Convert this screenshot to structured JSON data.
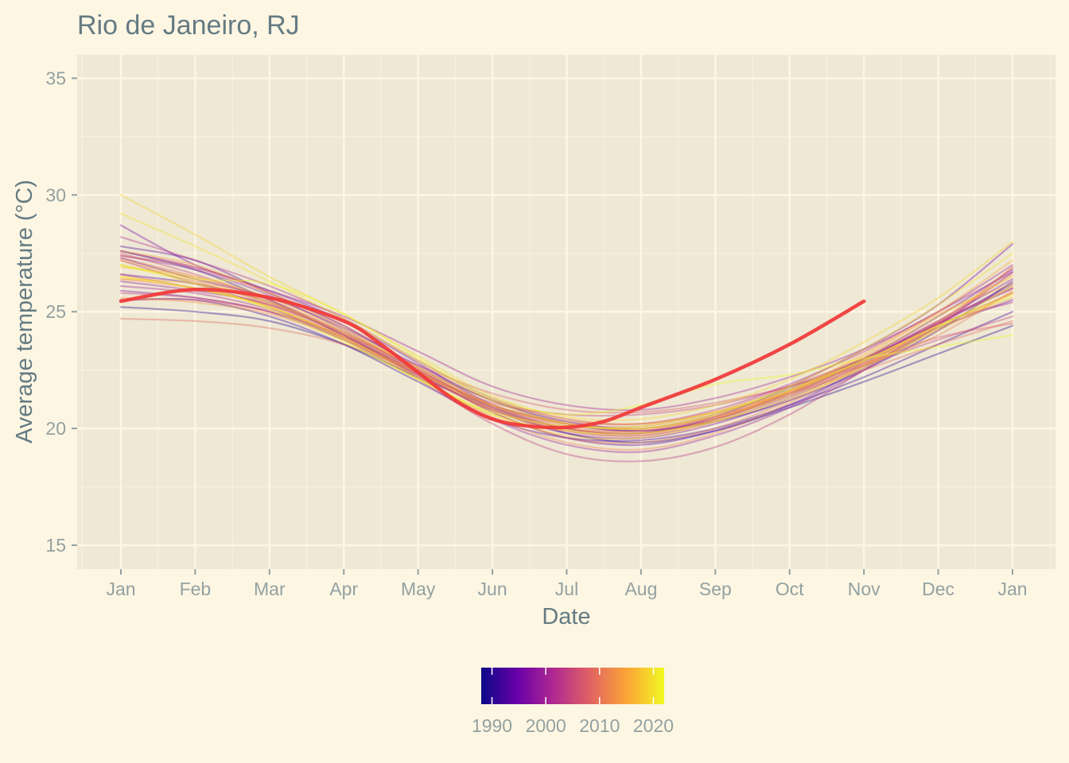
{
  "chart_data": {
    "type": "line",
    "title": "Rio de Janeiro, RJ",
    "xlabel": "Date",
    "ylabel": "Average temperature (°C)",
    "x_tick_labels": [
      "Jan",
      "Feb",
      "Mar",
      "Apr",
      "May",
      "Jun",
      "Jul",
      "Aug",
      "Sep",
      "Oct",
      "Nov",
      "Dec",
      "Jan"
    ],
    "y_ticks": [
      15,
      20,
      25,
      30,
      35
    ],
    "ylim": [
      14,
      36
    ],
    "xlim_months": [
      0,
      12
    ],
    "grid": true,
    "colorbar": {
      "title": "",
      "labels": [
        1990,
        2000,
        2010,
        2020
      ],
      "range": [
        1988,
        2022
      ],
      "palette": [
        "#0d0887",
        "#6a00a8",
        "#b12a90",
        "#e16462",
        "#fca636",
        "#f0f921"
      ],
      "placement": "bottom"
    },
    "series": [
      {
        "year": 1990,
        "values": [
          25.2,
          25.0,
          24.6,
          23.6,
          22.2,
          20.9,
          19.8,
          19.4,
          19.9,
          20.9,
          22.0,
          23.2,
          24.4
        ]
      },
      {
        "year": 1991,
        "values": [
          27.6,
          26.8,
          25.5,
          24.0,
          22.4,
          21.0,
          20.2,
          19.9,
          20.3,
          21.2,
          22.5,
          24.2,
          26.3
        ]
      },
      {
        "year": 1992,
        "values": [
          25.5,
          25.5,
          24.8,
          23.6,
          22.0,
          20.4,
          19.6,
          19.5,
          20.0,
          21.0,
          22.2,
          23.6,
          25.0
        ]
      },
      {
        "year": 1993,
        "values": [
          27.8,
          27.2,
          25.8,
          24.4,
          22.6,
          21.2,
          20.3,
          20.0,
          20.6,
          21.7,
          23.0,
          24.5,
          26.2
        ]
      },
      {
        "year": 1994,
        "values": [
          26.6,
          26.2,
          25.4,
          24.0,
          22.4,
          20.7,
          19.6,
          19.3,
          19.9,
          21.0,
          22.6,
          24.3,
          25.5
        ]
      },
      {
        "year": 1995,
        "values": [
          27.3,
          26.4,
          25.6,
          24.3,
          22.7,
          21.2,
          20.2,
          19.9,
          20.4,
          21.5,
          23.0,
          24.8,
          26.8
        ]
      },
      {
        "year": 1996,
        "values": [
          28.7,
          27.0,
          25.9,
          24.6,
          22.8,
          21.0,
          20.0,
          19.8,
          20.5,
          21.8,
          23.4,
          25.3,
          27.9
        ]
      },
      {
        "year": 1997,
        "values": [
          25.9,
          25.6,
          25.0,
          23.8,
          22.3,
          20.8,
          19.8,
          19.6,
          20.2,
          21.3,
          22.8,
          24.5,
          26.0
        ]
      },
      {
        "year": 1998,
        "values": [
          27.4,
          26.8,
          25.7,
          24.2,
          22.5,
          20.9,
          20.0,
          19.8,
          20.4,
          21.5,
          22.9,
          24.6,
          26.4
        ]
      },
      {
        "year": 1999,
        "values": [
          26.3,
          25.9,
          25.3,
          24.0,
          22.2,
          20.4,
          19.3,
          19.0,
          19.7,
          20.9,
          22.5,
          24.4,
          26.7
        ]
      },
      {
        "year": 2000,
        "values": [
          27.6,
          26.9,
          25.9,
          24.8,
          23.3,
          21.8,
          21.0,
          20.8,
          21.3,
          22.2,
          23.4,
          25.0,
          27.0
        ]
      },
      {
        "year": 2001,
        "values": [
          26.1,
          25.8,
          25.1,
          23.9,
          22.3,
          20.8,
          19.9,
          19.7,
          20.3,
          21.4,
          22.9,
          24.5,
          25.4
        ]
      },
      {
        "year": 2002,
        "values": [
          28.2,
          27.2,
          26.1,
          24.7,
          22.9,
          21.3,
          20.4,
          20.2,
          20.8,
          21.9,
          23.3,
          25.0,
          26.7
        ]
      },
      {
        "year": 2003,
        "values": [
          27.2,
          26.2,
          25.2,
          23.8,
          22.1,
          20.2,
          18.9,
          18.6,
          19.2,
          20.6,
          22.5,
          24.5,
          26.1
        ]
      },
      {
        "year": 2004,
        "values": [
          25.8,
          25.6,
          25.0,
          23.9,
          22.4,
          21.1,
          20.6,
          20.6,
          21.0,
          21.8,
          22.7,
          23.8,
          24.8
        ]
      },
      {
        "year": 2005,
        "values": [
          27.5,
          26.6,
          25.5,
          24.1,
          22.5,
          20.9,
          20.0,
          19.8,
          20.4,
          21.6,
          23.0,
          24.6,
          26.0
        ]
      },
      {
        "year": 2006,
        "values": [
          26.6,
          26.0,
          25.3,
          24.1,
          22.5,
          21.0,
          20.2,
          20.1,
          20.7,
          21.8,
          23.0,
          24.4,
          25.8
        ]
      },
      {
        "year": 2007,
        "values": [
          25.5,
          25.5,
          25.0,
          24.0,
          22.7,
          21.5,
          20.8,
          20.7,
          21.1,
          21.8,
          22.8,
          23.9,
          24.5
        ]
      },
      {
        "year": 2008,
        "values": [
          27.4,
          26.9,
          25.8,
          24.4,
          22.6,
          21.0,
          20.1,
          19.9,
          20.5,
          21.6,
          22.9,
          24.4,
          26.9
        ]
      },
      {
        "year": 2009,
        "values": [
          24.7,
          24.6,
          24.3,
          23.6,
          22.4,
          21.0,
          20.3,
          20.2,
          20.7,
          21.5,
          22.5,
          23.6,
          24.6
        ]
      },
      {
        "year": 2010,
        "values": [
          27.3,
          26.5,
          25.5,
          24.1,
          22.4,
          20.7,
          19.6,
          19.4,
          20.0,
          21.2,
          22.7,
          24.5,
          26.9
        ]
      },
      {
        "year": 2011,
        "values": [
          27.0,
          26.3,
          25.3,
          23.9,
          22.3,
          20.8,
          20.0,
          19.9,
          20.5,
          21.5,
          22.7,
          24.0,
          25.9
        ]
      },
      {
        "year": 2012,
        "values": [
          26.4,
          26.0,
          25.2,
          23.9,
          22.2,
          20.5,
          19.4,
          19.1,
          19.8,
          21.1,
          22.7,
          24.6,
          26.6
        ]
      },
      {
        "year": 2013,
        "values": [
          25.6,
          25.4,
          24.9,
          23.8,
          22.4,
          21.0,
          20.2,
          20.0,
          20.5,
          21.4,
          22.7,
          24.2,
          25.8
        ]
      },
      {
        "year": 2014,
        "values": [
          27.6,
          27.0,
          25.8,
          24.3,
          22.5,
          20.8,
          19.9,
          19.7,
          20.4,
          21.6,
          23.1,
          24.9,
          26.2
        ]
      },
      {
        "year": 2015,
        "values": [
          27.2,
          26.4,
          25.4,
          24.0,
          22.4,
          20.9,
          20.0,
          19.8,
          20.4,
          21.6,
          23.2,
          25.0,
          27.2
        ]
      },
      {
        "year": 2016,
        "values": [
          26.4,
          26.2,
          25.4,
          24.1,
          22.6,
          21.2,
          20.4,
          20.2,
          20.7,
          21.6,
          22.8,
          24.3,
          25.6
        ]
      },
      {
        "year": 2017,
        "values": [
          26.9,
          26.5,
          25.6,
          24.2,
          22.6,
          21.0,
          20.2,
          20.0,
          20.6,
          21.6,
          22.9,
          24.4,
          25.8
        ]
      },
      {
        "year": 2018,
        "values": [
          26.5,
          26.0,
          25.2,
          23.9,
          22.2,
          20.6,
          19.7,
          19.6,
          20.3,
          21.5,
          23.0,
          24.8,
          26.5
        ]
      },
      {
        "year": 2019,
        "values": [
          30.0,
          28.3,
          26.5,
          24.9,
          23.1,
          21.4,
          20.5,
          20.4,
          21.0,
          22.1,
          23.7,
          25.6,
          28.0
        ]
      },
      {
        "year": 2020,
        "values": [
          29.2,
          27.8,
          26.3,
          24.7,
          22.9,
          21.2,
          20.2,
          20.0,
          20.6,
          21.8,
          23.4,
          25.3,
          27.5
        ]
      },
      {
        "year": 2021,
        "values": [
          26.5,
          26.0,
          25.2,
          23.8,
          22.1,
          20.6,
          19.9,
          19.8,
          20.3,
          21.3,
          22.6,
          24.3,
          26.1
        ]
      },
      {
        "year": 2022,
        "values": [
          27.0,
          26.2,
          25.1,
          23.7,
          22.1,
          20.7,
          20.1,
          20.1,
          20.7,
          21.7,
          22.9,
          24.4,
          25.7
        ]
      },
      {
        "year": 2023,
        "values": [
          27.0,
          26.4,
          26.2,
          24.9,
          23.0,
          21.3,
          20.6,
          21.0,
          21.9,
          22.3,
          23.0,
          23.5,
          24.0
        ]
      }
    ],
    "highlight_series": {
      "name": "",
      "color": "#f03c3c",
      "x": [
        0,
        1,
        2,
        3,
        3.5,
        4,
        4.5,
        5,
        5.5,
        6,
        6.5,
        7,
        8,
        9,
        10
      ],
      "values": [
        25.45,
        25.95,
        25.6,
        24.6,
        23.6,
        22.4,
        21.2,
        20.4,
        20.1,
        20.05,
        20.3,
        20.9,
        22.1,
        23.6,
        25.45
      ]
    }
  }
}
